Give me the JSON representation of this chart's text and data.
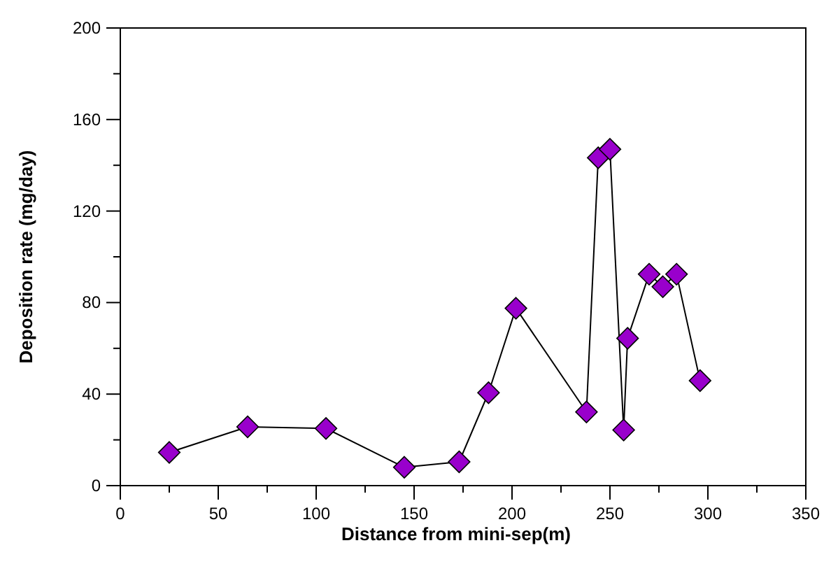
{
  "chart_data": {
    "type": "line",
    "xlabel": "Distance from mini-sep(m)",
    "ylabel": "Deposition rate (mg/day)",
    "xlim": [
      0,
      350
    ],
    "xticks": [
      0,
      50,
      100,
      150,
      200,
      250,
      300,
      350
    ],
    "ylim": [
      0,
      200
    ],
    "yticks": [
      0,
      40,
      80,
      120,
      160,
      200
    ],
    "marker": "diamond",
    "series": [
      {
        "color": "#9900cc",
        "x": [
          25,
          65,
          105,
          145,
          173,
          188,
          202,
          238,
          244,
          250,
          257,
          259,
          270,
          277,
          284,
          296
        ],
        "values": [
          14.5,
          25.7,
          25,
          8,
          10.4,
          40.6,
          77.5,
          32.2,
          143.3,
          147,
          24.3,
          64.4,
          92.4,
          86.9,
          92.4,
          45.9
        ]
      }
    ]
  }
}
